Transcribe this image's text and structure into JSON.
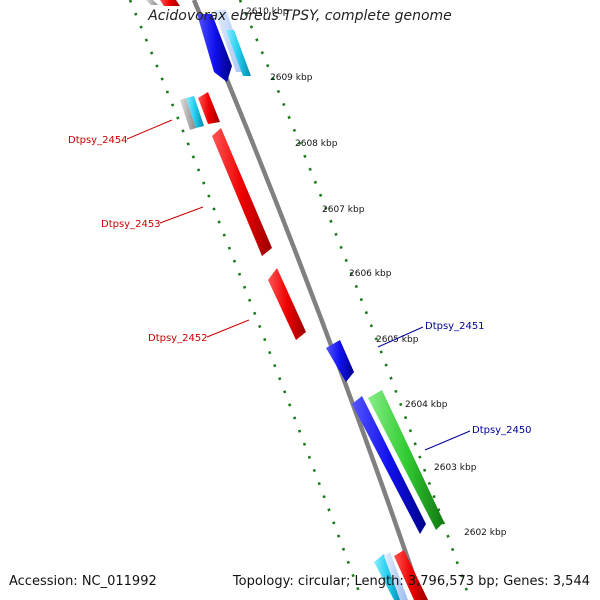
{
  "title": "Acidovorax ebreus TPSY, complete genome",
  "accession_text": "Accession: NC_011992",
  "summary": {
    "topology": "Topology: circular; ",
    "length": "Length: 3,796,573 bp; ",
    "genes": "Genes: 3,544"
  },
  "ticks": [
    "2610 kbp",
    "2609 kbp",
    "2608 kbp",
    "2607 kbp",
    "2606 kbp",
    "2605 kbp",
    "2604 kbp",
    "2603 kbp",
    "2602 kbp"
  ],
  "gene_labels": [
    {
      "name": "Dtpsy_2454",
      "strand": "reverse",
      "color": "#cc0000"
    },
    {
      "name": "Dtpsy_2453",
      "strand": "reverse",
      "color": "#cc0000"
    },
    {
      "name": "Dtpsy_2452",
      "strand": "reverse",
      "color": "#cc0000"
    },
    {
      "name": "Dtpsy_2451",
      "strand": "forward",
      "color": "#000099"
    },
    {
      "name": "Dtpsy_2450",
      "strand": "forward",
      "color": "#000099"
    }
  ],
  "colors": {
    "backbone": "#808080",
    "ruler": "#1a7a1a",
    "gene_red": "#ee0000",
    "gene_blue": "#1111ee",
    "gene_green": "#33cc33",
    "gene_cyan": "#22ccee",
    "gene_lightblue": "#aaccff",
    "gene_gray": "#999999"
  }
}
